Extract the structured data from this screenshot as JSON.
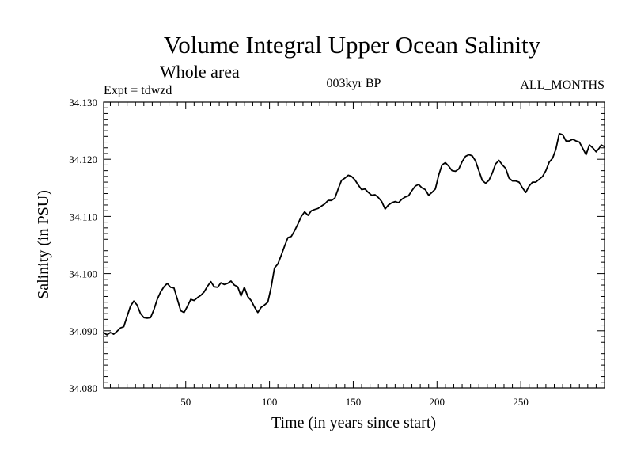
{
  "chart_data": {
    "type": "line",
    "title": "Volume Integral Upper Ocean Salinity",
    "subtitle": "Whole area",
    "annotations": {
      "left": "Expt = tdwzd",
      "center": "003kyr BP",
      "right": "ALL_MONTHS"
    },
    "xlabel": "Time (in years since start)",
    "ylabel": "Salinity (in PSU)",
    "xlim": [
      1,
      300
    ],
    "ylim": [
      34.08,
      34.13
    ],
    "xticks": [
      50,
      100,
      150,
      200,
      250
    ],
    "xtick_labels": [
      "50",
      "100",
      "150",
      "200",
      "250"
    ],
    "yticks": [
      34.08,
      34.09,
      34.1,
      34.11,
      34.12,
      34.13
    ],
    "ytick_labels": [
      "34.080",
      "34.090",
      "34.100",
      "34.110",
      "34.120",
      "34.130"
    ],
    "grid": false,
    "series": [
      {
        "color": "#000000",
        "points": [
          [
            1,
            34.0897
          ],
          [
            3,
            34.0893
          ],
          [
            5,
            34.0897
          ],
          [
            7,
            34.0894
          ],
          [
            9,
            34.0899
          ],
          [
            11,
            34.0905
          ],
          [
            13,
            34.0907
          ],
          [
            15,
            34.0925
          ],
          [
            17,
            34.0943
          ],
          [
            19,
            34.0952
          ],
          [
            21,
            34.0945
          ],
          [
            23,
            34.093
          ],
          [
            25,
            34.0923
          ],
          [
            27,
            34.0922
          ],
          [
            29,
            34.0923
          ],
          [
            31,
            34.0937
          ],
          [
            33,
            34.0955
          ],
          [
            35,
            34.0968
          ],
          [
            37,
            34.0977
          ],
          [
            39,
            34.0983
          ],
          [
            41,
            34.0976
          ],
          [
            43,
            34.0975
          ],
          [
            45,
            34.0955
          ],
          [
            47,
            34.0935
          ],
          [
            49,
            34.0932
          ],
          [
            51,
            34.0943
          ],
          [
            53,
            34.0955
          ],
          [
            55,
            34.0953
          ],
          [
            57,
            34.0958
          ],
          [
            59,
            34.0962
          ],
          [
            61,
            34.0968
          ],
          [
            63,
            34.0978
          ],
          [
            65,
            34.0986
          ],
          [
            67,
            34.0977
          ],
          [
            69,
            34.0976
          ],
          [
            71,
            34.0984
          ],
          [
            73,
            34.0981
          ],
          [
            75,
            34.0983
          ],
          [
            77,
            34.0987
          ],
          [
            79,
            34.098
          ],
          [
            81,
            34.0977
          ],
          [
            83,
            34.0961
          ],
          [
            85,
            34.0976
          ],
          [
            87,
            34.096
          ],
          [
            89,
            34.0953
          ],
          [
            91,
            34.0942
          ],
          [
            93,
            34.0932
          ],
          [
            95,
            34.0941
          ],
          [
            97,
            34.0945
          ],
          [
            99,
            34.095
          ],
          [
            101,
            34.0976
          ],
          [
            103,
            34.101
          ],
          [
            105,
            34.1017
          ],
          [
            107,
            34.1032
          ],
          [
            109,
            34.1048
          ],
          [
            111,
            34.1063
          ],
          [
            113,
            34.1065
          ],
          [
            115,
            34.1075
          ],
          [
            117,
            34.1087
          ],
          [
            119,
            34.11
          ],
          [
            121,
            34.1108
          ],
          [
            123,
            34.1102
          ],
          [
            125,
            34.111
          ],
          [
            127,
            34.1112
          ],
          [
            129,
            34.1114
          ],
          [
            131,
            34.1118
          ],
          [
            133,
            34.1122
          ],
          [
            135,
            34.1128
          ],
          [
            137,
            34.1128
          ],
          [
            139,
            34.1132
          ],
          [
            141,
            34.1148
          ],
          [
            143,
            34.1163
          ],
          [
            145,
            34.1167
          ],
          [
            147,
            34.1172
          ],
          [
            149,
            34.117
          ],
          [
            151,
            34.1164
          ],
          [
            153,
            34.1155
          ],
          [
            155,
            34.1147
          ],
          [
            157,
            34.1148
          ],
          [
            159,
            34.1142
          ],
          [
            161,
            34.1137
          ],
          [
            163,
            34.1138
          ],
          [
            165,
            34.1133
          ],
          [
            167,
            34.1126
          ],
          [
            169,
            34.1113
          ],
          [
            171,
            34.112
          ],
          [
            173,
            34.1124
          ],
          [
            175,
            34.1126
          ],
          [
            177,
            34.1124
          ],
          [
            179,
            34.113
          ],
          [
            181,
            34.1134
          ],
          [
            183,
            34.1136
          ],
          [
            185,
            34.1145
          ],
          [
            187,
            34.1153
          ],
          [
            189,
            34.1156
          ],
          [
            191,
            34.115
          ],
          [
            193,
            34.1147
          ],
          [
            195,
            34.1137
          ],
          [
            197,
            34.1142
          ],
          [
            199,
            34.1148
          ],
          [
            201,
            34.1172
          ],
          [
            203,
            34.119
          ],
          [
            205,
            34.1194
          ],
          [
            207,
            34.1188
          ],
          [
            209,
            34.118
          ],
          [
            211,
            34.1179
          ],
          [
            213,
            34.1183
          ],
          [
            215,
            34.1196
          ],
          [
            217,
            34.1205
          ],
          [
            219,
            34.1208
          ],
          [
            221,
            34.1206
          ],
          [
            223,
            34.1197
          ],
          [
            225,
            34.118
          ],
          [
            227,
            34.1163
          ],
          [
            229,
            34.1158
          ],
          [
            231,
            34.1163
          ],
          [
            233,
            34.1176
          ],
          [
            235,
            34.1192
          ],
          [
            237,
            34.1198
          ],
          [
            239,
            34.119
          ],
          [
            241,
            34.1184
          ],
          [
            243,
            34.1167
          ],
          [
            245,
            34.1162
          ],
          [
            247,
            34.1162
          ],
          [
            249,
            34.116
          ],
          [
            251,
            34.115
          ],
          [
            253,
            34.1142
          ],
          [
            255,
            34.1153
          ],
          [
            257,
            34.116
          ],
          [
            259,
            34.116
          ],
          [
            261,
            34.1165
          ],
          [
            263,
            34.117
          ],
          [
            265,
            34.118
          ],
          [
            267,
            34.1195
          ],
          [
            269,
            34.1202
          ],
          [
            271,
            34.1218
          ],
          [
            273,
            34.1245
          ],
          [
            275,
            34.1243
          ],
          [
            277,
            34.1232
          ],
          [
            279,
            34.1232
          ],
          [
            281,
            34.1235
          ],
          [
            283,
            34.1232
          ],
          [
            285,
            34.123
          ],
          [
            287,
            34.1219
          ],
          [
            289,
            34.1208
          ],
          [
            291,
            34.1225
          ],
          [
            293,
            34.122
          ],
          [
            295,
            34.1213
          ],
          [
            297,
            34.122
          ],
          [
            298,
            34.1225
          ],
          [
            300,
            34.1222
          ]
        ]
      }
    ]
  }
}
